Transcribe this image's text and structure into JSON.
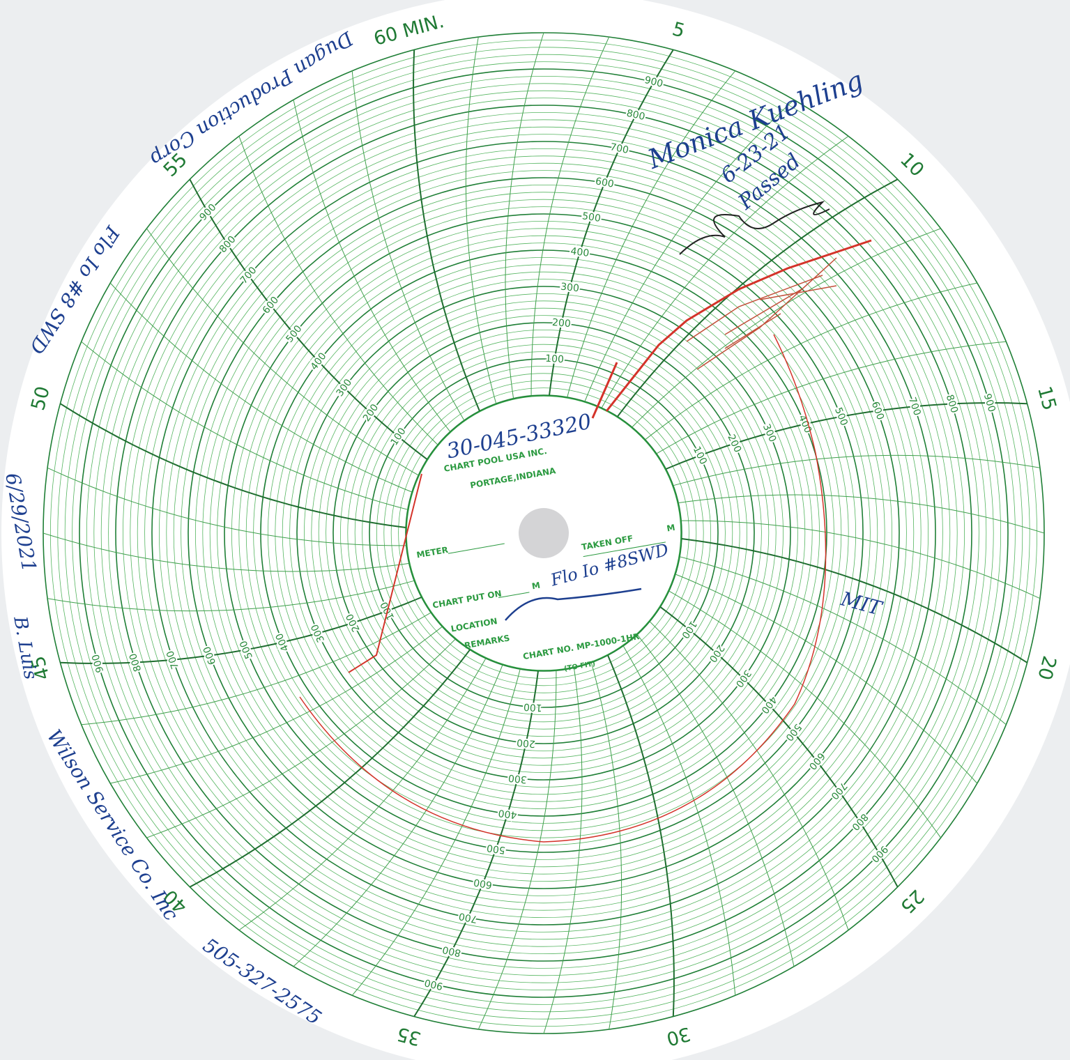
{
  "chart_paper": {
    "minute_labels": [
      "60 MIN.",
      "5",
      "10",
      "15",
      "20",
      "25",
      "30",
      "35",
      "40",
      "45",
      "50",
      "55"
    ],
    "pressure_labels": [
      100,
      200,
      300,
      400,
      500,
      600,
      700,
      800,
      900
    ],
    "center_label": {
      "company": "CHART POOL USA INC.",
      "city": "PORTAGE,INDIANA",
      "meter": "METER",
      "taken_off": "TAKEN OFF",
      "m_taken": "M",
      "put_on": "CHART PUT ON",
      "m_put": "M",
      "location": "LOCATION",
      "remarks": "REMARKS",
      "chart_no": "CHART NO. MP-1000-1HR",
      "fit": "(TO FIT)"
    }
  },
  "handwriting": {
    "api_number": "30-045-33320",
    "well_center": "Flo Io #8SWD",
    "operator": "Dugan Production Corp",
    "well_edge": "Flo Io #8 SWD",
    "date": "6/29/2021",
    "initials": "B. Luis",
    "service_company": "Wilson Service Co. Inc",
    "phone": "505-327-2575",
    "mit": "MIT",
    "witness": "Monica Kuehling",
    "witness_date": "6-23-21",
    "result": "Passed"
  }
}
